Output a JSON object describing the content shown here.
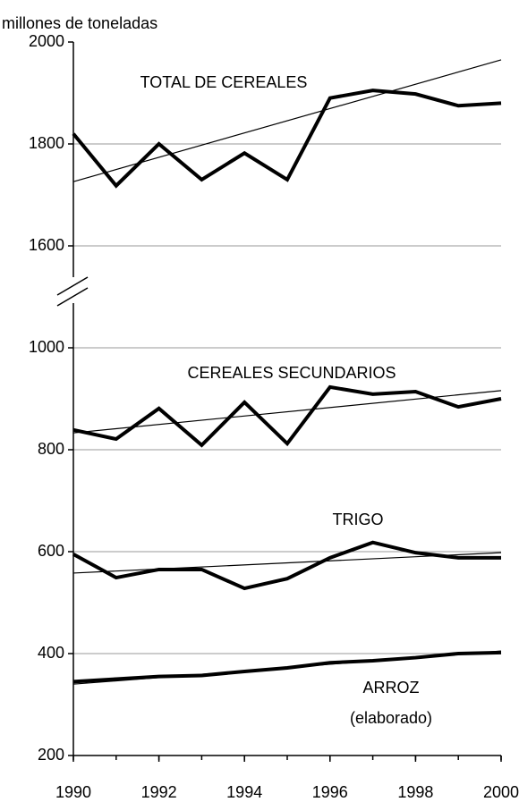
{
  "chart_data": {
    "type": "line",
    "y_axis_label": "millones de toneladas",
    "x": [
      1990,
      1991,
      1992,
      1993,
      1994,
      1995,
      1996,
      1997,
      1998,
      1999,
      2000
    ],
    "xlim": [
      1990,
      2000
    ],
    "xticks": [
      1990,
      1992,
      1994,
      1996,
      1998,
      2000
    ],
    "ylim": [
      200,
      2000
    ],
    "ybreak": [
      1000,
      1600
    ],
    "yticks": [
      200,
      400,
      600,
      800,
      1000,
      1600,
      1800,
      2000
    ],
    "grid": true,
    "series": [
      {
        "name": "TOTAL DE CEREALES",
        "color": "#000000",
        "values": [
          1820,
          1718,
          1800,
          1730,
          1782,
          1730,
          1890,
          1905,
          1898,
          1875,
          1880
        ],
        "trend": [
          1726,
          1965
        ]
      },
      {
        "name": "CEREALES SECUNDARIOS",
        "color": "#000000",
        "values": [
          839,
          821,
          881,
          809,
          893,
          812,
          923,
          909,
          914,
          884,
          900
        ],
        "trend": [
          833,
          916
        ]
      },
      {
        "name": "TRIGO",
        "color": "#000000",
        "values": [
          595,
          549,
          565,
          565,
          528,
          547,
          588,
          618,
          598,
          588,
          588
        ],
        "trend": [
          558,
          598
        ]
      },
      {
        "name": "ARROZ",
        "color": "#000000",
        "values": [
          345,
          350,
          355,
          357,
          365,
          372,
          382,
          386,
          392,
          400,
          402
        ],
        "trend": [
          340,
          405
        ]
      }
    ],
    "annotations": [
      "(elaborado)"
    ]
  }
}
